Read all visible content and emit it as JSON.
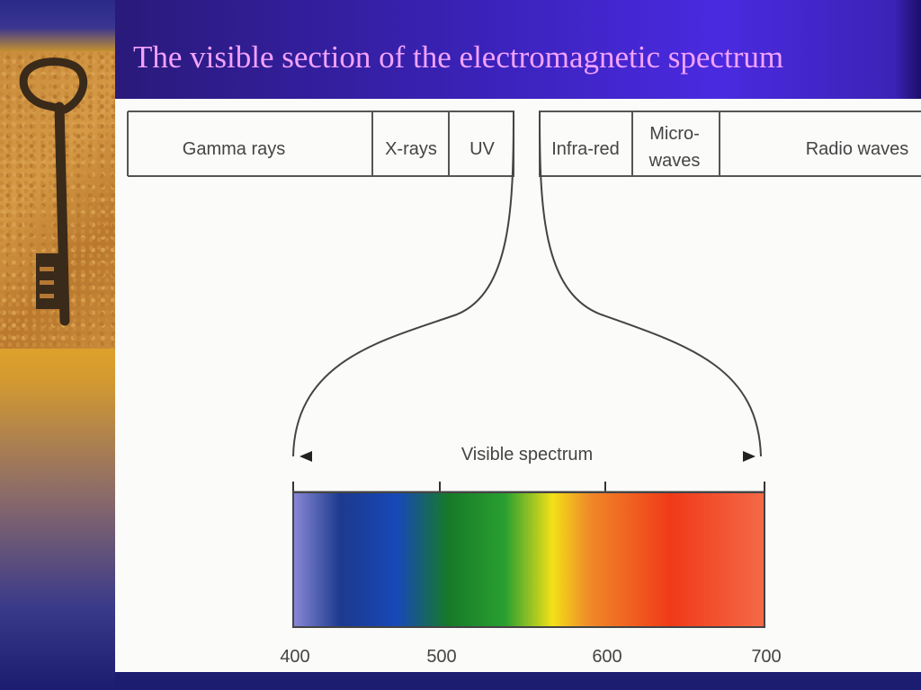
{
  "slide": {
    "title": "The visible section of the electromagnetic spectrum"
  },
  "figure": {
    "bands": [
      "Gamma rays",
      "X-rays",
      "UV",
      "Infra-red",
      "Micro-",
      "waves",
      "Radio waves"
    ],
    "visible_label": "Visible spectrum",
    "wavelength_ticks": [
      "400",
      "500",
      "600",
      "700"
    ],
    "spectrum_colors": [
      "#8a88d6",
      "#1c3a8e",
      "#1848b8",
      "#167a28",
      "#2aa030",
      "#f2e018",
      "#f08828",
      "#f03a18",
      "#f46a48"
    ]
  }
}
